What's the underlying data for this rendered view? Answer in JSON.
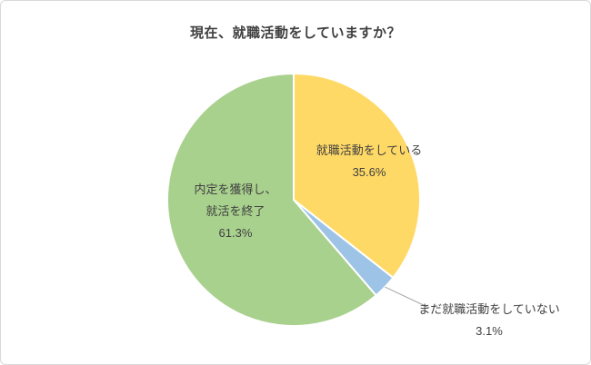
{
  "chart_data": {
    "type": "pie",
    "title": "現在、就職活動をしていますか？",
    "direction": "clockwise",
    "start_angle_deg": 0,
    "legend_position": "none",
    "slices": [
      {
        "label": "就職活動をしている",
        "value": 35.6,
        "pct_label": "35.6%",
        "color": "#FFD966",
        "label_position": "inside"
      },
      {
        "label": "まだ就職活動をしていない",
        "value": 3.1,
        "pct_label": "3.1%",
        "color": "#9DC3E6",
        "label_position": "outside-with-leader-line"
      },
      {
        "label": "内定を獲得し、就活を終了",
        "value": 61.3,
        "pct_label": "61.3%",
        "color": "#A9D18E",
        "label_position": "inside",
        "label_line1": "内定を獲得し、",
        "label_line2": "就活を終了"
      }
    ],
    "colors": {
      "slice_border": "#ffffff",
      "leader_line": "#a6a6a6",
      "title_text": "#404040",
      "label_text": "#404040"
    }
  }
}
